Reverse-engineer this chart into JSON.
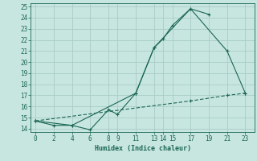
{
  "xlabel": "Humidex (Indice chaleur)",
  "bg_color": "#c8e6e0",
  "grid_color": "#a8ccc6",
  "line_color": "#1a6655",
  "xlim": [
    -0.5,
    24
  ],
  "ylim": [
    13.7,
    25.3
  ],
  "xticks": [
    0,
    2,
    4,
    6,
    8,
    9,
    11,
    13,
    14,
    15,
    17,
    19,
    21,
    23
  ],
  "yticks": [
    14,
    15,
    16,
    17,
    18,
    19,
    20,
    21,
    22,
    23,
    24,
    25
  ],
  "line1_x": [
    0,
    2,
    4,
    6,
    8,
    9,
    11,
    13,
    14,
    15,
    17,
    19
  ],
  "line1_y": [
    14.7,
    14.3,
    14.3,
    13.9,
    15.7,
    15.3,
    17.2,
    21.3,
    22.1,
    23.3,
    24.8,
    24.3
  ],
  "line2_x": [
    0,
    4,
    11,
    13,
    17,
    21,
    23
  ],
  "line2_y": [
    14.7,
    14.3,
    17.2,
    21.3,
    24.8,
    21.0,
    17.2
  ],
  "line3_x": [
    0,
    17,
    21,
    23
  ],
  "line3_y": [
    14.7,
    16.5,
    17.0,
    17.2
  ]
}
